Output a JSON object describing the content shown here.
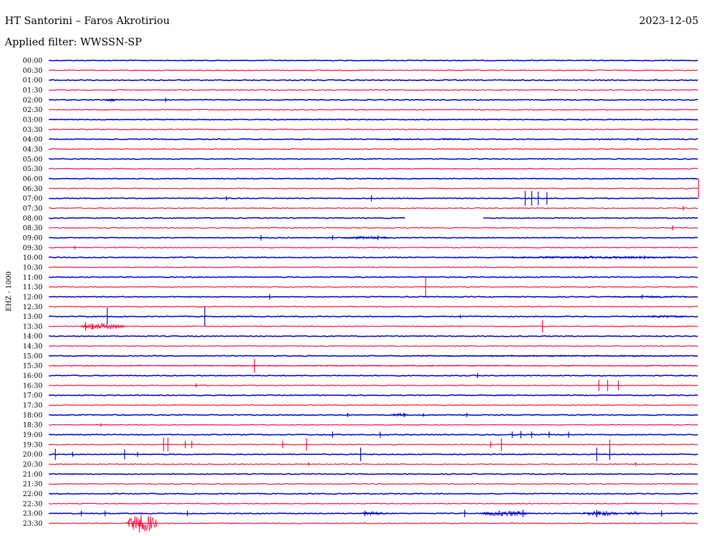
{
  "header": {
    "station": "HT Santorini – Faros Akrotiriou",
    "date": "2023-12-05",
    "filter": "Applied filter: WWSSN-SP"
  },
  "colors": {
    "trace_a": "#0000cc",
    "trace_b": "#ff0033",
    "text": "#000000",
    "background": "#ffffff"
  },
  "chart_data": {
    "type": "line",
    "title": "HT Santorini – Faros Akrotiriou",
    "channel_label": "EHZ - 1000",
    "row_interval_minutes": 30,
    "time_labels": [
      "00:00",
      "00:30",
      "01:00",
      "01:30",
      "02:00",
      "02:30",
      "03:00",
      "03:30",
      "04:00",
      "04:30",
      "05:00",
      "05:30",
      "06:00",
      "06:30",
      "07:00",
      "07:30",
      "08:00",
      "08:30",
      "09:00",
      "09:30",
      "10:00",
      "10:30",
      "11:00",
      "11:30",
      "12:00",
      "12:30",
      "13:00",
      "13:30",
      "14:00",
      "14:30",
      "15:00",
      "15:30",
      "16:00",
      "16:30",
      "17:00",
      "17:30",
      "18:00",
      "18:30",
      "19:00",
      "19:30",
      "20:00",
      "20:30",
      "21:00",
      "21:30",
      "22:00",
      "22:30",
      "23:00",
      "23:30"
    ],
    "gaps": [
      {
        "row": 16,
        "start_min": 16.5,
        "end_min": 20.0
      }
    ],
    "events": [
      {
        "row": 4,
        "min": 5.4,
        "amp": 0.35
      },
      {
        "row": 8,
        "min": 27.2,
        "amp": 0.25
      },
      {
        "row": 13,
        "min": 30.0,
        "amp": 1.6
      },
      {
        "row": 14,
        "min": 22.0,
        "amp": 1.2
      },
      {
        "row": 14,
        "min": 22.3,
        "amp": 1.2
      },
      {
        "row": 14,
        "min": 22.6,
        "amp": 1.1
      },
      {
        "row": 14,
        "min": 23.0,
        "amp": 1.0
      },
      {
        "row": 14,
        "min": 14.9,
        "amp": 0.5
      },
      {
        "row": 14,
        "min": 8.2,
        "amp": 0.35
      },
      {
        "row": 15,
        "min": 29.3,
        "amp": 0.4
      },
      {
        "row": 17,
        "min": 28.8,
        "amp": 0.4
      },
      {
        "row": 18,
        "min": 9.8,
        "amp": 0.45
      },
      {
        "row": 18,
        "min": 13.1,
        "amp": 0.4
      },
      {
        "row": 18,
        "min": 15.2,
        "amp": 0.4
      },
      {
        "row": 19,
        "min": 1.2,
        "amp": 0.3
      },
      {
        "row": 20,
        "min": 27.5,
        "amp": 0.3
      },
      {
        "row": 23,
        "min": 17.4,
        "amp": 1.7
      },
      {
        "row": 24,
        "min": 10.2,
        "amp": 0.45
      },
      {
        "row": 24,
        "min": 27.4,
        "amp": 0.35
      },
      {
        "row": 26,
        "min": 2.7,
        "amp": 1.4
      },
      {
        "row": 26,
        "min": 7.2,
        "amp": 1.6
      },
      {
        "row": 26,
        "min": 19.0,
        "amp": 0.3
      },
      {
        "row": 27,
        "min": 1.7,
        "amp": 0.7
      },
      {
        "row": 27,
        "min": 2.0,
        "amp": 0.5
      },
      {
        "row": 27,
        "min": 22.8,
        "amp": 1.0
      },
      {
        "row": 31,
        "min": 9.5,
        "amp": 1.1
      },
      {
        "row": 32,
        "min": 19.8,
        "amp": 0.4
      },
      {
        "row": 33,
        "min": 6.8,
        "amp": 0.35
      },
      {
        "row": 33,
        "min": 25.4,
        "amp": 0.9
      },
      {
        "row": 33,
        "min": 25.8,
        "amp": 0.9
      },
      {
        "row": 33,
        "min": 26.3,
        "amp": 0.8
      },
      {
        "row": 36,
        "min": 13.8,
        "amp": 0.35
      },
      {
        "row": 36,
        "min": 16.4,
        "amp": 0.35
      },
      {
        "row": 36,
        "min": 17.3,
        "amp": 0.3
      },
      {
        "row": 36,
        "min": 19.3,
        "amp": 0.35
      },
      {
        "row": 37,
        "min": 2.4,
        "amp": 0.25
      },
      {
        "row": 38,
        "min": 13.1,
        "amp": 0.5
      },
      {
        "row": 38,
        "min": 15.3,
        "amp": 0.5
      },
      {
        "row": 38,
        "min": 21.4,
        "amp": 0.5
      },
      {
        "row": 38,
        "min": 21.8,
        "amp": 0.6
      },
      {
        "row": 38,
        "min": 22.3,
        "amp": 0.5
      },
      {
        "row": 38,
        "min": 23.1,
        "amp": 0.5
      },
      {
        "row": 38,
        "min": 24.0,
        "amp": 0.5
      },
      {
        "row": 39,
        "min": 5.3,
        "amp": 1.1
      },
      {
        "row": 39,
        "min": 5.5,
        "amp": 1.1
      },
      {
        "row": 39,
        "min": 6.3,
        "amp": 0.6
      },
      {
        "row": 39,
        "min": 6.6,
        "amp": 0.6
      },
      {
        "row": 39,
        "min": 10.8,
        "amp": 0.6
      },
      {
        "row": 39,
        "min": 11.9,
        "amp": 1.0
      },
      {
        "row": 39,
        "min": 20.4,
        "amp": 0.5
      },
      {
        "row": 39,
        "min": 20.9,
        "amp": 1.0
      },
      {
        "row": 39,
        "min": 25.9,
        "amp": 0.8
      },
      {
        "row": 40,
        "min": 0.3,
        "amp": 0.9
      },
      {
        "row": 40,
        "min": 1.1,
        "amp": 0.4
      },
      {
        "row": 40,
        "min": 3.5,
        "amp": 0.8
      },
      {
        "row": 40,
        "min": 4.1,
        "amp": 0.4
      },
      {
        "row": 40,
        "min": 14.4,
        "amp": 1.1
      },
      {
        "row": 40,
        "min": 25.3,
        "amp": 1.1
      },
      {
        "row": 40,
        "min": 25.9,
        "amp": 0.9
      },
      {
        "row": 41,
        "min": 12.0,
        "amp": 0.3
      },
      {
        "row": 41,
        "min": 27.1,
        "amp": 0.3
      },
      {
        "row": 46,
        "min": 1.5,
        "amp": 0.45
      },
      {
        "row": 46,
        "min": 2.6,
        "amp": 0.45
      },
      {
        "row": 46,
        "min": 6.4,
        "amp": 0.45
      },
      {
        "row": 46,
        "min": 14.6,
        "amp": 0.45
      },
      {
        "row": 46,
        "min": 19.2,
        "amp": 0.6
      },
      {
        "row": 46,
        "min": 21.9,
        "amp": 0.6
      },
      {
        "row": 46,
        "min": 25.3,
        "amp": 0.6
      },
      {
        "row": 46,
        "min": 28.3,
        "amp": 0.5
      }
    ],
    "bursts": [
      {
        "row": 4,
        "start_min": 2.6,
        "end_min": 3.1,
        "amp": 0.35
      },
      {
        "row": 8,
        "start_min": 15.7,
        "end_min": 16.3,
        "amp": 0.2
      },
      {
        "row": 8,
        "start_min": 18.0,
        "end_min": 19.0,
        "amp": 0.15
      },
      {
        "row": 18,
        "start_min": 13.6,
        "end_min": 15.8,
        "amp": 0.25
      },
      {
        "row": 20,
        "start_min": 21.0,
        "end_min": 29.5,
        "amp": 0.2
      },
      {
        "row": 24,
        "start_min": 26.0,
        "end_min": 29.5,
        "amp": 0.15
      },
      {
        "row": 26,
        "start_min": 27.5,
        "end_min": 29.5,
        "amp": 0.2
      },
      {
        "row": 27,
        "start_min": 1.5,
        "end_min": 3.5,
        "amp": 0.5
      },
      {
        "row": 30,
        "start_min": 16.0,
        "end_min": 29.5,
        "amp": 0.1
      },
      {
        "row": 31,
        "start_min": 0.0,
        "end_min": 29.9,
        "amp": 0.08
      },
      {
        "row": 36,
        "start_min": 15.8,
        "end_min": 16.6,
        "amp": 0.3
      },
      {
        "row": 46,
        "start_min": 14.4,
        "end_min": 15.6,
        "amp": 0.3
      },
      {
        "row": 46,
        "start_min": 20.0,
        "end_min": 22.3,
        "amp": 0.45
      },
      {
        "row": 46,
        "start_min": 24.6,
        "end_min": 26.3,
        "amp": 0.45
      },
      {
        "row": 46,
        "start_min": 26.7,
        "end_min": 27.3,
        "amp": 0.35
      },
      {
        "row": 47,
        "start_min": 3.6,
        "end_min": 5.0,
        "amp": 1.6
      }
    ]
  }
}
